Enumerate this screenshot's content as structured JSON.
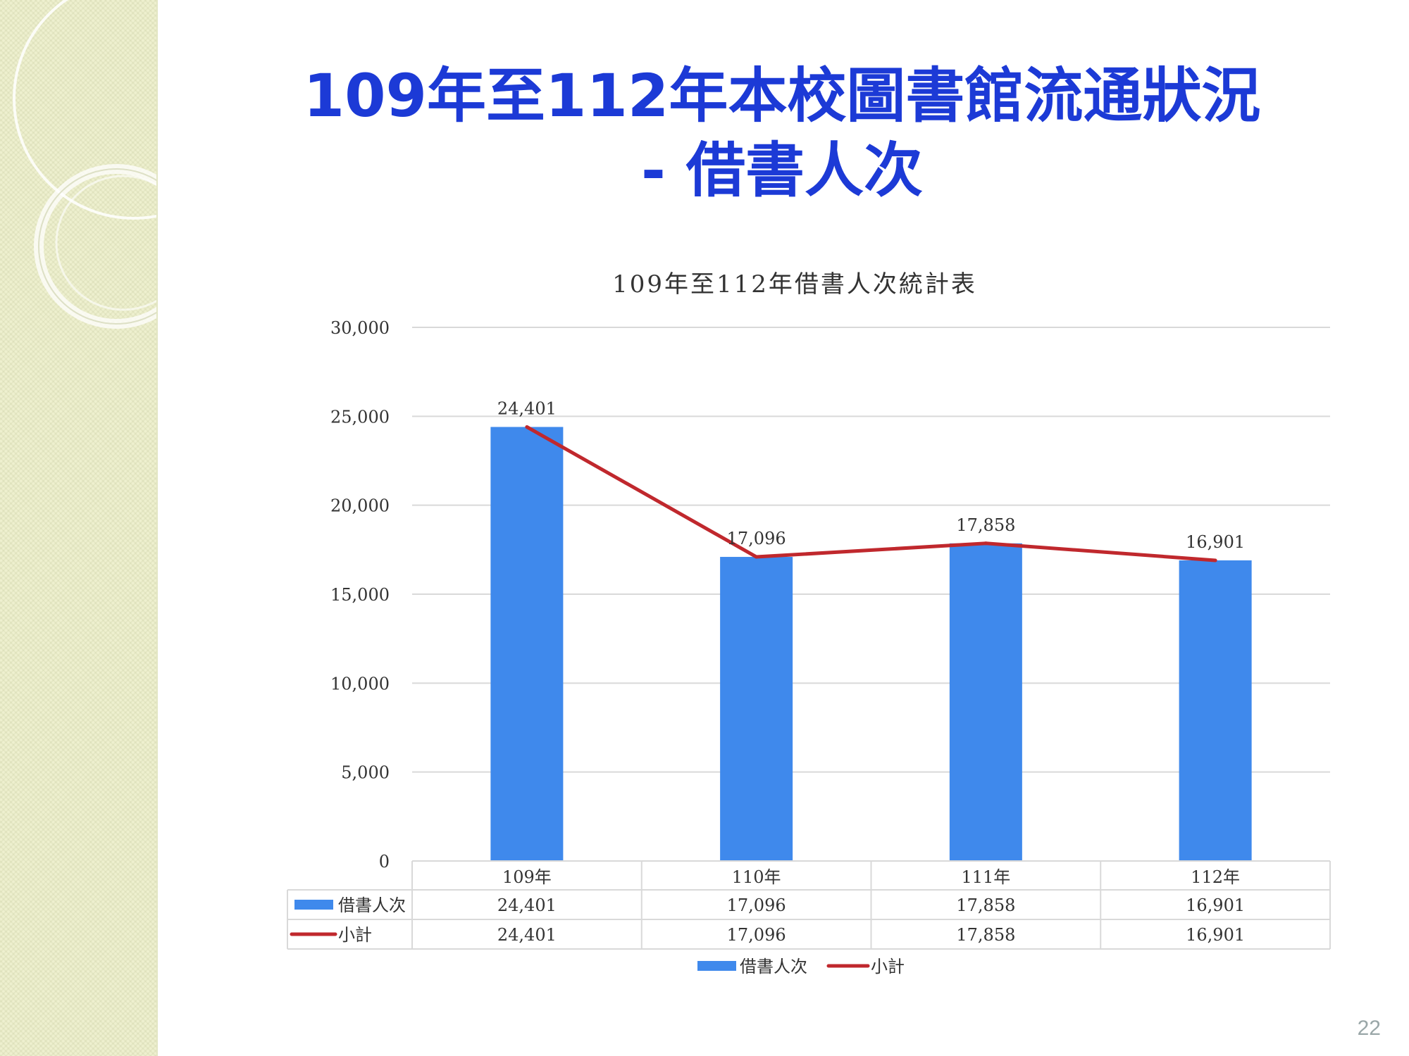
{
  "slide": {
    "title_line1": "109年至112年本校圖書館流通狀況",
    "title_line2": "- 借書人次",
    "page_number": "22",
    "colors": {
      "title": "#1c3ad6",
      "sidebar": "#eef0cf"
    }
  },
  "chart_data": {
    "type": "bar",
    "title": "109年至112年借書人次統計表",
    "categories": [
      "109年",
      "110年",
      "111年",
      "112年"
    ],
    "series": [
      {
        "name": "借書人次",
        "kind": "bar",
        "color": "#3f89ec",
        "values": [
          24401,
          17096,
          17858,
          16901
        ],
        "labels": [
          "24,401",
          "17,096",
          "17,858",
          "16,901"
        ]
      },
      {
        "name": "小計",
        "kind": "line",
        "color": "#c0282d",
        "values": [
          24401,
          17096,
          17858,
          16901
        ],
        "labels": [
          "24,401",
          "17,096",
          "17,858",
          "16,901"
        ]
      }
    ],
    "y_ticks": [
      "0",
      "5,000",
      "10,000",
      "15,000",
      "20,000",
      "25,000",
      "30,000"
    ],
    "ylim": [
      0,
      30000
    ],
    "grid": true,
    "data_table": true,
    "legend_position": "bottom"
  }
}
